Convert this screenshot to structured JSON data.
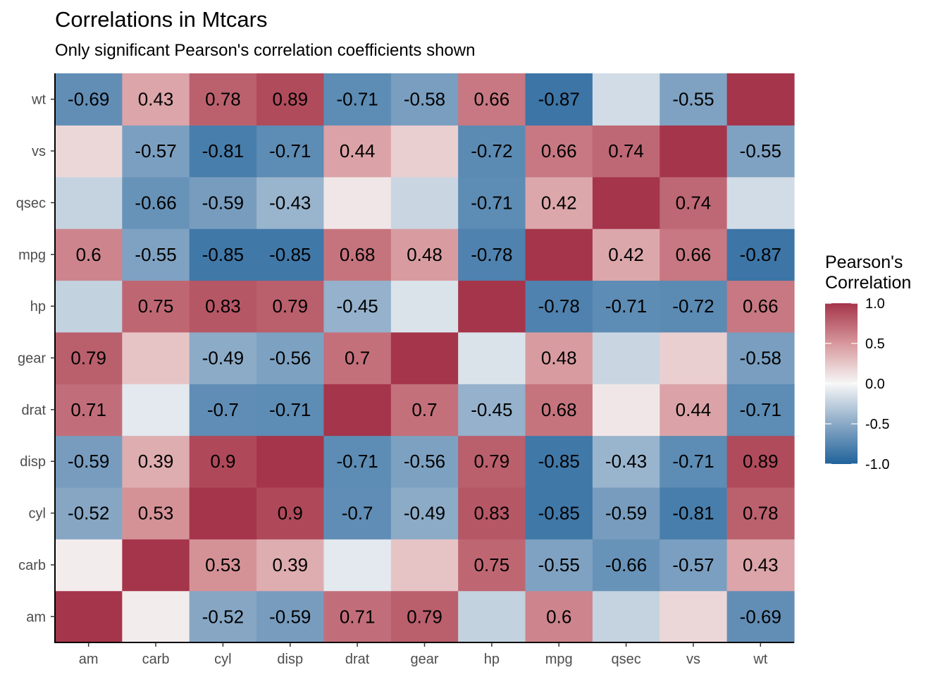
{
  "chart_data": {
    "type": "heatmap",
    "title": "Correlations in Mtcars",
    "subtitle": "Only significant Pearson's correlation coefficients shown",
    "x_categories": [
      "am",
      "carb",
      "cyl",
      "disp",
      "drat",
      "gear",
      "hp",
      "mpg",
      "qsec",
      "vs",
      "wt"
    ],
    "y_categories": [
      "am",
      "carb",
      "cyl",
      "disp",
      "drat",
      "gear",
      "hp",
      "mpg",
      "qsec",
      "vs",
      "wt"
    ],
    "values": [
      [
        1.0,
        0.06,
        -0.52,
        -0.59,
        0.71,
        0.79,
        -0.24,
        0.6,
        -0.23,
        0.17,
        -0.69
      ],
      [
        0.06,
        1.0,
        0.53,
        0.39,
        -0.09,
        0.27,
        0.75,
        -0.55,
        -0.66,
        -0.57,
        0.43
      ],
      [
        -0.52,
        0.53,
        1.0,
        0.9,
        -0.7,
        -0.49,
        0.83,
        -0.85,
        -0.59,
        -0.81,
        0.78
      ],
      [
        -0.59,
        0.39,
        0.9,
        1.0,
        -0.71,
        -0.56,
        0.79,
        -0.85,
        -0.43,
        -0.71,
        0.89
      ],
      [
        0.71,
        -0.09,
        -0.7,
        -0.71,
        1.0,
        0.7,
        -0.45,
        0.68,
        0.09,
        0.44,
        -0.71
      ],
      [
        0.79,
        0.27,
        -0.49,
        -0.56,
        0.7,
        1.0,
        -0.13,
        0.48,
        -0.21,
        0.21,
        -0.58
      ],
      [
        -0.24,
        0.75,
        0.83,
        0.79,
        -0.45,
        -0.13,
        1.0,
        -0.78,
        -0.71,
        -0.72,
        0.66
      ],
      [
        0.6,
        -0.55,
        -0.85,
        -0.85,
        0.68,
        0.48,
        -0.78,
        1.0,
        0.42,
        0.66,
        -0.87
      ],
      [
        -0.23,
        -0.66,
        -0.59,
        -0.43,
        0.09,
        -0.21,
        -0.71,
        0.42,
        1.0,
        0.74,
        -0.17
      ],
      [
        0.17,
        -0.57,
        -0.81,
        -0.71,
        0.44,
        0.21,
        -0.72,
        0.66,
        0.74,
        1.0,
        -0.55
      ],
      [
        -0.69,
        0.43,
        0.78,
        0.89,
        -0.71,
        -0.58,
        0.66,
        -0.87,
        -0.17,
        -0.55,
        1.0
      ]
    ],
    "labels": [
      [
        "",
        "",
        "-0.52",
        "-0.59",
        "0.71",
        "0.79",
        "",
        "0.6",
        "",
        "",
        "-0.69"
      ],
      [
        "",
        "",
        "0.53",
        "0.39",
        "",
        "",
        "0.75",
        "-0.55",
        "-0.66",
        "-0.57",
        "0.43"
      ],
      [
        "-0.52",
        "0.53",
        "",
        "0.9",
        "-0.7",
        "-0.49",
        "0.83",
        "-0.85",
        "-0.59",
        "-0.81",
        "0.78"
      ],
      [
        "-0.59",
        "0.39",
        "0.9",
        "",
        "-0.71",
        "-0.56",
        "0.79",
        "-0.85",
        "-0.43",
        "-0.71",
        "0.89"
      ],
      [
        "0.71",
        "",
        "-0.7",
        "-0.71",
        "",
        "0.7",
        "-0.45",
        "0.68",
        "",
        "0.44",
        "-0.71"
      ],
      [
        "0.79",
        "",
        "-0.49",
        "-0.56",
        "0.7",
        "",
        "",
        "0.48",
        "",
        "",
        "-0.58"
      ],
      [
        "",
        "0.75",
        "0.83",
        "0.79",
        "-0.45",
        "",
        "",
        "-0.78",
        "-0.71",
        "-0.72",
        "0.66"
      ],
      [
        "0.6",
        "-0.55",
        "-0.85",
        "-0.85",
        "0.68",
        "0.48",
        "-0.78",
        "",
        "0.42",
        "0.66",
        "-0.87"
      ],
      [
        "",
        "-0.66",
        "-0.59",
        "-0.43",
        "",
        "",
        "-0.71",
        "0.42",
        "",
        "0.74",
        ""
      ],
      [
        "",
        "-0.57",
        "-0.81",
        "-0.71",
        "0.44",
        "",
        "-0.72",
        "0.66",
        "0.74",
        "",
        "-0.55"
      ],
      [
        "-0.69",
        "0.43",
        "0.78",
        "0.89",
        "-0.71",
        "-0.58",
        "0.66",
        "-0.87",
        "",
        "-0.55",
        ""
      ]
    ],
    "color_scale": {
      "low": "#2166ac",
      "mid": "#f7f7f7",
      "high": "#b2182b",
      "domain": [
        -1,
        1
      ]
    },
    "legend": {
      "title_lines": [
        "Pearson's",
        "Correlation"
      ],
      "ticks": [
        1.0,
        0.5,
        0.0,
        -0.5,
        -1.0
      ],
      "tick_labels": [
        "1.0",
        "0.5",
        "0.0",
        "-0.5",
        "-1.0"
      ],
      "position": "right"
    },
    "grid": false
  }
}
